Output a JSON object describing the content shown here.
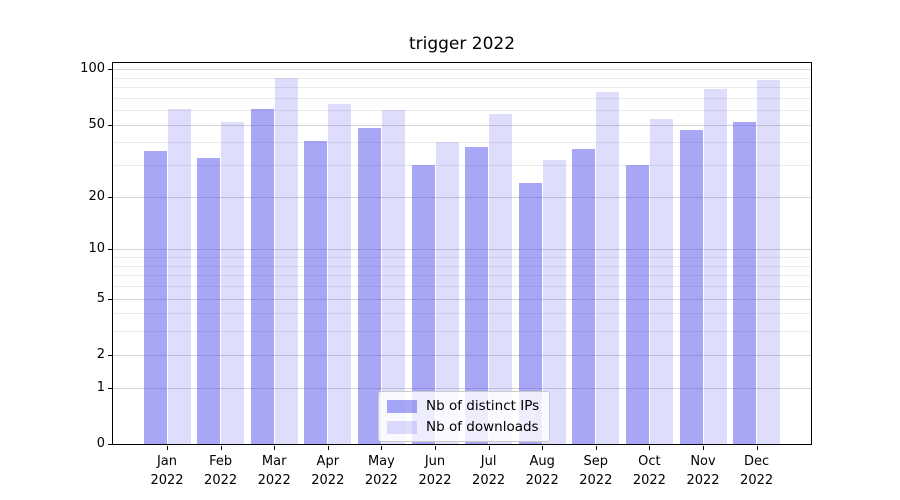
{
  "chart_data": {
    "type": "bar",
    "title": "trigger 2022",
    "categories": [
      "Jan",
      "Feb",
      "Mar",
      "Apr",
      "May",
      "Jun",
      "Jul",
      "Aug",
      "Sep",
      "Oct",
      "Nov",
      "Dec"
    ],
    "year_label": "2022",
    "series": [
      {
        "name": "Nb of distinct IPs",
        "color": "rgba(80,80,238,0.5)",
        "solid_color": "#a8a8f6",
        "values": [
          36,
          33,
          61,
          41,
          48,
          30,
          38,
          24,
          37,
          30,
          47,
          52
        ]
      },
      {
        "name": "Nb of downloads",
        "color": "rgba(80,80,238,0.19)",
        "solid_color": "#dcdcf9",
        "values": [
          61,
          52,
          90,
          65,
          60,
          40,
          57,
          32,
          75,
          54,
          78,
          88
        ]
      }
    ],
    "yscale": "log1p",
    "yticks": [
      100,
      50,
      20,
      10,
      5,
      2,
      1,
      0
    ],
    "minor_gridlines": [
      3,
      4,
      6,
      7,
      8,
      9,
      30,
      40,
      60,
      70,
      80,
      90
    ],
    "ylim": [
      0,
      108
    ],
    "xlabel": "",
    "ylabel": "",
    "grid": "on",
    "legend_position": "lower center"
  },
  "colors": {
    "grid_major": "#d4d4d4",
    "grid_minor": "#ebebeb",
    "axis": "#000000",
    "background": "#ffffff"
  }
}
